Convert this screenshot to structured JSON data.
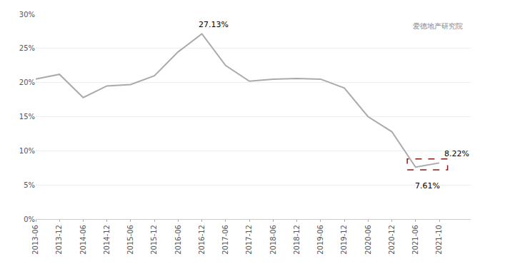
{
  "chart_data": {
    "type": "line",
    "categories": [
      "2013-06",
      "2013-12",
      "2014-06",
      "2014-12",
      "2015-06",
      "2015-12",
      "2016-06",
      "2016-12",
      "2017-06",
      "2017-12",
      "2018-06",
      "2018-12",
      "2019-06",
      "2019-12",
      "2020-06",
      "2020-12",
      "2021-06",
      "2021-10"
    ],
    "values": [
      20.5,
      21.2,
      17.8,
      19.5,
      19.7,
      21.0,
      24.5,
      27.13,
      22.5,
      20.2,
      20.5,
      20.6,
      20.5,
      19.2,
      15.0,
      12.8,
      7.61,
      8.22
    ],
    "color": "#aaaaaa",
    "ylim": [
      0,
      30
    ],
    "yticks": [
      {
        "value": 0,
        "label": "0%"
      },
      {
        "value": 5,
        "label": "5%"
      },
      {
        "value": 10,
        "label": "10%"
      },
      {
        "value": 15,
        "label": "15%"
      },
      {
        "value": 20,
        "label": "20%"
      },
      {
        "value": 25,
        "label": "25%"
      },
      {
        "value": 30,
        "label": "30%"
      }
    ],
    "grid": true,
    "legend": false,
    "annotations": [
      {
        "text": "27.13%",
        "x": "2016-12",
        "y": 27.13
      },
      {
        "text": "7.61%",
        "x": "2021-06",
        "y": 7.61
      },
      {
        "text": "8.22%",
        "x": "2021-10",
        "y": 8.22
      },
      {
        "text": "爱德地产研究院"
      },
      {
        "shape": "rect",
        "x": [
          "2021-06",
          "2021-10"
        ],
        "y": [
          7.2,
          8.8
        ],
        "color": "#8b1a1a",
        "line_style": "dashed"
      }
    ]
  }
}
